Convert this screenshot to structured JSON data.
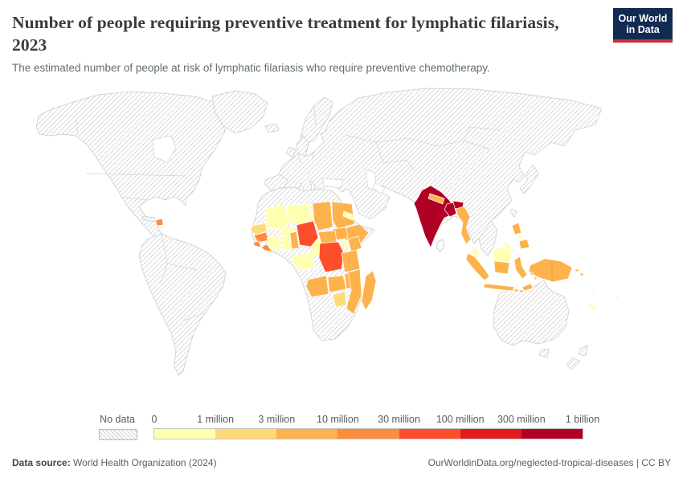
{
  "header": {
    "title": "Number of people requiring preventive treatment for lymphatic filariasis, 2023",
    "subtitle": "The estimated number of people at risk of lymphatic filariasis who require preventive chemotherapy.",
    "logo": {
      "line1": "Our World",
      "line2": "in Data",
      "bg_color": "#122b52",
      "accent_color": "#c7303c"
    }
  },
  "legend": {
    "no_data_label": "No data",
    "tick_labels": [
      "0",
      "1 million",
      "3 million",
      "10 million",
      "30 million",
      "100 million",
      "300 million",
      "1 billion"
    ],
    "bin_colors": [
      "#ffffb2",
      "#fed976",
      "#feb24c",
      "#fd8d3c",
      "#fc4e2a",
      "#e31a1c",
      "#b10026"
    ],
    "no_data_pattern": "diagonal-hatch"
  },
  "footer": {
    "source_label": "Data source:",
    "source_value": " World Health Organization (2024)",
    "link_text": "OurWorldinData.org/neglected-tropical-diseases | CC BY"
  },
  "chart_data": {
    "type": "heatmap",
    "subtype": "world-choropleth-map",
    "title": "Number of people requiring preventive treatment for lymphatic filariasis, 2023",
    "year": "2023",
    "unit": "people requiring preventive chemotherapy",
    "scale": "log-binned",
    "bins": [
      "0–1 million",
      "1–3 million",
      "3–10 million",
      "10–30 million",
      "30–100 million",
      "100–300 million",
      "300 million–1 billion"
    ],
    "bin_colors": [
      "#ffffb2",
      "#fed976",
      "#feb24c",
      "#fd8d3c",
      "#fc4e2a",
      "#e31a1c",
      "#b10026"
    ],
    "legend_position": "bottom",
    "no_data_style": "white with gray diagonal hatching (most of Americas, Europe, Russia, China, Middle East, Australia)",
    "countries_by_color_bin": {
      "300 million–1 billion (darkest red)": [
        "India",
        "Bangladesh"
      ],
      "30–100 million (red-orange)": [
        "Nigeria",
        "Democratic Republic of Congo"
      ],
      "3–30 million (orange)": [
        "Guinea",
        "Sierra Leone",
        "Liberia",
        "Benin",
        "Chad",
        "Sudan",
        "South Sudan",
        "Central African Republic",
        "Ethiopia",
        "Kenya",
        "Tanzania",
        "Angola",
        "Zambia",
        "Malawi",
        "Mozambique",
        "Madagascar",
        "Haiti",
        "Nepal",
        "Myanmar",
        "Indonesia",
        "Philippines",
        "Papua New Guinea",
        "Timor-Leste",
        "Solomon Islands"
      ],
      "0–3 million (pale yellow)": [
        "Senegal",
        "Gambia",
        "Mali",
        "Burkina Faso",
        "Niger",
        "Cote d'Ivoire",
        "Ghana",
        "Cameroon",
        "Gabon",
        "Congo",
        "Uganda",
        "Eritrea",
        "Zimbabwe",
        "Malaysia",
        "Brunei",
        "Fiji",
        "Vanuatu",
        "New Caledonia"
      ]
    }
  }
}
